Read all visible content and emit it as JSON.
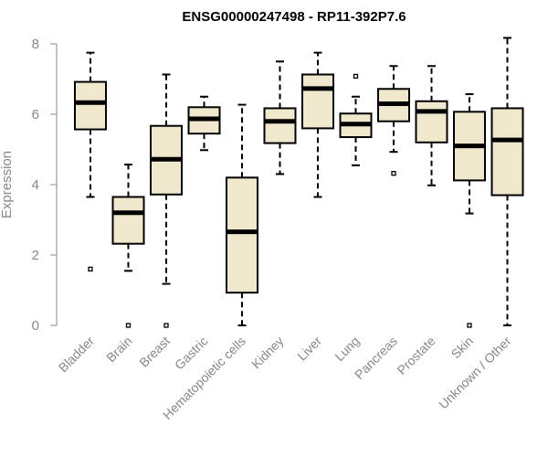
{
  "chart_data": {
    "type": "boxplot",
    "title": "ENSG00000247498 - RP11-392P7.6",
    "ylabel": "Expression",
    "xlabel": "",
    "ylim": [
      0,
      8.2
    ],
    "yticks": [
      0,
      2,
      4,
      6,
      8
    ],
    "grid": false,
    "colors": {
      "box_fill": "#efe8cc",
      "box_stroke": "#000000",
      "axis": "#888888",
      "label": "#888888"
    },
    "categories": [
      "Bladder",
      "Brain",
      "Breast",
      "Gastric",
      "Hematopoietic cells",
      "Kidney",
      "Liver",
      "Lung",
      "Pancreas",
      "Prostate",
      "Skin",
      "Unknown / Other"
    ],
    "boxes": [
      {
        "category": "Bladder",
        "whisker_low": 3.65,
        "q1": 5.57,
        "median": 6.33,
        "q3": 6.92,
        "whisker_high": 7.75,
        "outliers": [
          1.6
        ]
      },
      {
        "category": "Brain",
        "whisker_low": 1.55,
        "q1": 2.32,
        "median": 3.2,
        "q3": 3.65,
        "whisker_high": 4.57,
        "outliers": [
          0.0
        ]
      },
      {
        "category": "Breast",
        "whisker_low": 1.18,
        "q1": 3.72,
        "median": 4.72,
        "q3": 5.67,
        "whisker_high": 7.13,
        "outliers": [
          0.0
        ]
      },
      {
        "category": "Gastric",
        "whisker_low": 4.98,
        "q1": 5.45,
        "median": 5.87,
        "q3": 6.2,
        "whisker_high": 6.5,
        "outliers": []
      },
      {
        "category": "Hematopoietic cells",
        "whisker_low": 0.0,
        "q1": 0.93,
        "median": 2.66,
        "q3": 4.2,
        "whisker_high": 6.27,
        "outliers": []
      },
      {
        "category": "Kidney",
        "whisker_low": 4.3,
        "q1": 5.18,
        "median": 5.8,
        "q3": 6.17,
        "whisker_high": 7.5,
        "outliers": []
      },
      {
        "category": "Liver",
        "whisker_low": 3.65,
        "q1": 5.6,
        "median": 6.73,
        "q3": 7.13,
        "whisker_high": 7.75,
        "outliers": []
      },
      {
        "category": "Lung",
        "whisker_low": 4.55,
        "q1": 5.35,
        "median": 5.72,
        "q3": 6.02,
        "whisker_high": 6.5,
        "outliers": [
          7.08
        ]
      },
      {
        "category": "Pancreas",
        "whisker_low": 4.93,
        "q1": 5.8,
        "median": 6.3,
        "q3": 6.72,
        "whisker_high": 7.37,
        "outliers": [
          4.32
        ]
      },
      {
        "category": "Prostate",
        "whisker_low": 3.98,
        "q1": 5.2,
        "median": 6.08,
        "q3": 6.37,
        "whisker_high": 7.37,
        "outliers": []
      },
      {
        "category": "Skin",
        "whisker_low": 3.18,
        "q1": 4.12,
        "median": 5.1,
        "q3": 6.07,
        "whisker_high": 6.57,
        "outliers": [
          0.0
        ]
      },
      {
        "category": "Unknown / Other",
        "whisker_low": 0.0,
        "q1": 3.7,
        "median": 5.27,
        "q3": 6.17,
        "whisker_high": 8.17,
        "outliers": []
      }
    ]
  }
}
